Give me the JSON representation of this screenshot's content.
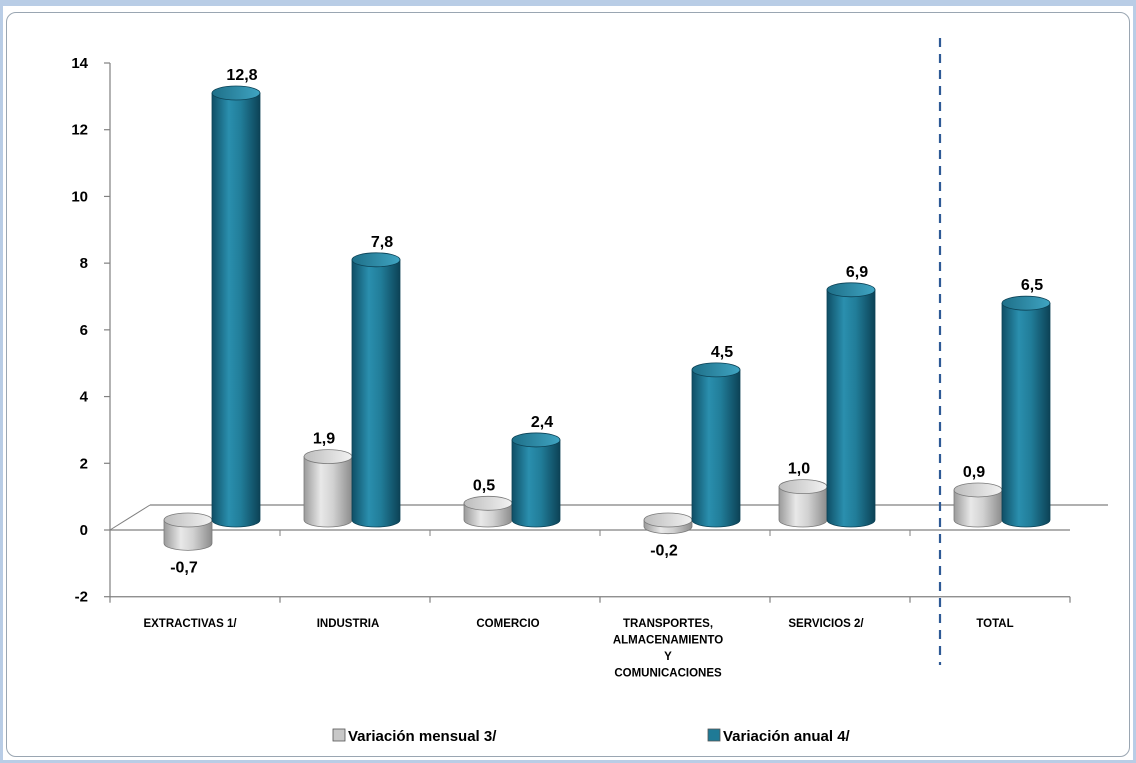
{
  "chart_data": {
    "type": "bar",
    "categories": [
      [
        "EXTRACTIVAS 1/"
      ],
      [
        "INDUSTRIA"
      ],
      [
        "COMERCIO"
      ],
      [
        "TRANSPORTES,",
        "ALMACENAMIENTO",
        "Y",
        "COMUNICACIONES"
      ],
      [
        "SERVICIOS 2/"
      ],
      [
        "TOTAL"
      ]
    ],
    "series": [
      {
        "name": "Variación mensual 3/",
        "values": [
          -0.7,
          1.9,
          0.5,
          -0.2,
          1.0,
          0.9
        ],
        "labels": [
          "-0,7",
          "1,9",
          "0,5",
          "-0,2",
          "1,0",
          "0,9"
        ],
        "color": "#c8c8c8"
      },
      {
        "name": "Variación anual 4/",
        "values": [
          12.8,
          7.8,
          2.4,
          4.5,
          6.9,
          6.5
        ],
        "labels": [
          "12,8",
          "7,8",
          "2,4",
          "4,5",
          "6,9",
          "6,5"
        ],
        "color": "#1f7a96"
      }
    ],
    "ylim": [
      -2,
      14
    ],
    "yticks": [
      -2,
      0,
      2,
      4,
      6,
      8,
      10,
      12,
      14
    ],
    "separator": "dashed-line-before-last-category",
    "legend_position": "bottom",
    "grid": false
  }
}
